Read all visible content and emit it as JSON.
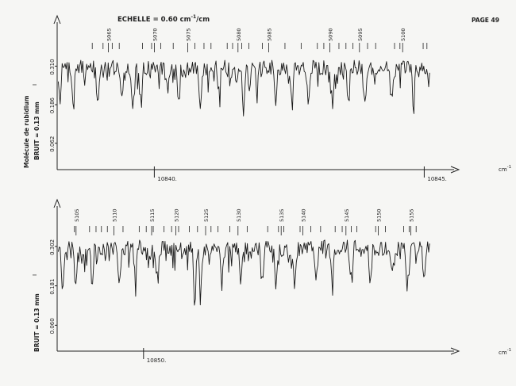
{
  "header": {
    "scale_label": "ECHELLE = 0.60 cm",
    "scale_exp": "-1",
    "scale_suffix": "/cm",
    "page_label": "PAGE 49"
  },
  "side": {
    "molecule_label": "Molécule de rubidium",
    "noise_label_top": "BRUIT = 0.13 mm",
    "noise_label_bottom": "BRUIT = 0.13 mm",
    "ordinate_symbol": "I"
  },
  "chart_data": [
    {
      "type": "line",
      "x_unit": "cm",
      "x_unit_exp": "-1",
      "xlim": [
        10838.2,
        10845.2
      ],
      "x_ticks": [
        10840,
        10845
      ],
      "x_tick_labels": [
        "10840.",
        "10845."
      ],
      "y_ticks": [
        0.31,
        0.186,
        0.062
      ],
      "y_tick_labels": [
        "0.310",
        "0.186",
        "0.062"
      ],
      "ylim": [
        0.0,
        0.38
      ],
      "line_numbers": [
        "5065",
        "5070",
        "5075",
        "5080",
        "5085",
        "5090",
        "5095",
        "5100"
      ],
      "line_number_positions_cm": [
        10839.15,
        10840.0,
        10840.62,
        10841.55,
        10842.12,
        10843.25,
        10843.8,
        10844.6
      ],
      "assignment_ticks_cm": [
        10838.85,
        10839.05,
        10839.22,
        10839.35,
        10839.78,
        10839.95,
        10840.12,
        10840.35,
        10840.75,
        10840.92,
        10841.05,
        10841.35,
        10841.45,
        10841.62,
        10841.75,
        10842.0,
        10842.42,
        10842.72,
        10843.02,
        10843.14,
        10843.42,
        10843.55,
        10843.68,
        10843.95,
        10844.1,
        10844.45,
        10844.55,
        10844.98,
        10845.05
      ],
      "trace": {
        "seed": 7,
        "points": 380,
        "baseline": 0.305,
        "noise_amplitude": 0.024,
        "dip_depths": [
          0.1,
          0.13,
          0.12,
          0.09,
          0.13,
          0.11,
          0.09,
          0.1,
          0.12,
          0.08,
          0.11,
          0.09,
          0.1,
          0.12,
          0.1,
          0.11,
          0.1,
          0.12,
          0.09,
          0.11
        ],
        "dip_positions_cm": [
          10838.25,
          10838.5,
          10838.95,
          10839.4,
          10839.6,
          10839.75,
          10840.25,
          10840.45,
          10840.85,
          10841.2,
          10841.65,
          10841.9,
          10842.25,
          10842.55,
          10842.85,
          10843.3,
          10843.6,
          10843.9,
          10844.4,
          10844.8
        ]
      }
    },
    {
      "type": "line",
      "x_unit": "cm",
      "x_unit_exp": "-1",
      "xlim": [
        10848.4,
        10855.4
      ],
      "x_ticks": [
        10850
      ],
      "x_tick_labels": [
        "10850."
      ],
      "y_ticks": [
        0.302,
        0.181,
        0.06
      ],
      "y_tick_labels": [
        "0.302",
        "0.181",
        "0.060"
      ],
      "ylim": [
        0.0,
        0.37
      ],
      "line_numbers": [
        "5105",
        "5110",
        "5115",
        "5120",
        "5125",
        "5130",
        "5135",
        "5140",
        "5145",
        "5150",
        "5155"
      ],
      "line_number_positions_cm": [
        10848.75,
        10849.45,
        10850.15,
        10850.6,
        10851.15,
        10851.75,
        10852.55,
        10852.95,
        10853.75,
        10854.35,
        10854.95
      ],
      "assignment_ticks_cm": [
        10848.72,
        10849.0,
        10849.12,
        10849.22,
        10849.33,
        10849.62,
        10849.92,
        10850.05,
        10850.18,
        10850.38,
        10850.52,
        10850.65,
        10850.85,
        10851.0,
        10851.25,
        10851.38,
        10851.6,
        10851.92,
        10852.3,
        10852.5,
        10852.6,
        10852.9,
        10853.1,
        10853.28,
        10853.55,
        10853.68,
        10853.85,
        10853.95,
        10854.3,
        10854.48,
        10854.82,
        10854.92,
        10855.05
      ],
      "trace": {
        "seed": 23,
        "points": 380,
        "baseline": 0.298,
        "noise_amplitude": 0.024,
        "dip_depths": [
          0.12,
          0.1,
          0.11,
          0.13,
          0.1,
          0.09,
          0.16,
          0.11,
          0.12,
          0.1,
          0.09,
          0.11,
          0.12,
          0.1,
          0.11,
          0.1,
          0.12,
          0.09,
          0.1,
          0.11
        ],
        "dip_positions_cm": [
          10848.5,
          10848.75,
          10849.05,
          10849.55,
          10849.85,
          10850.25,
          10850.95,
          10851.05,
          10851.45,
          10851.8,
          10852.2,
          10852.45,
          10852.8,
          10853.2,
          10853.5,
          10853.85,
          10854.2,
          10854.6,
          10854.9,
          10855.2
        ]
      }
    }
  ]
}
